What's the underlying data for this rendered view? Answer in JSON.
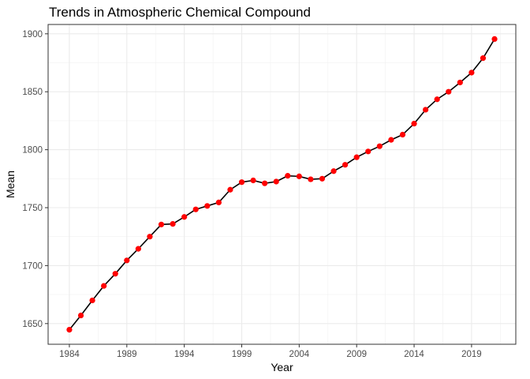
{
  "chart_data": {
    "type": "line",
    "title": "Trends in Atmospheric Chemical Compound",
    "xlabel": "Year",
    "ylabel": "Mean",
    "x": [
      1984,
      1985,
      1986,
      1987,
      1988,
      1989,
      1990,
      1991,
      1992,
      1993,
      1994,
      1995,
      1996,
      1997,
      1998,
      1999,
      2000,
      2001,
      2002,
      2003,
      2004,
      2005,
      2006,
      2007,
      2008,
      2009,
      2010,
      2011,
      2012,
      2013,
      2014,
      2015,
      2016,
      2017,
      2018,
      2019,
      2020,
      2021
    ],
    "series": [
      {
        "values": [
          1644.7,
          1657.0,
          1670.0,
          1682.5,
          1693.0,
          1704.5,
          1714.5,
          1725.0,
          1735.5,
          1736.0,
          1742.0,
          1748.5,
          1751.5,
          1754.5,
          1765.5,
          1772.0,
          1773.5,
          1771.0,
          1772.5,
          1777.5,
          1777.0,
          1774.5,
          1775.0,
          1781.5,
          1787.0,
          1793.5,
          1798.5,
          1803.0,
          1808.5,
          1813.0,
          1822.5,
          1834.5,
          1843.5,
          1850.0,
          1858.0,
          1866.5,
          1879.0,
          1895.5
        ],
        "line_color": "#000000",
        "point_color": "#ff0000"
      }
    ],
    "xticks": [
      1984,
      1989,
      1994,
      1999,
      2004,
      2009,
      2014,
      2019
    ],
    "yticks": [
      1650,
      1700,
      1750,
      1800,
      1850,
      1900
    ],
    "xlim": [
      1982.15,
      2022.85
    ],
    "ylim": [
      1632.16,
      1908.04
    ],
    "grid": true,
    "legend": "none"
  }
}
